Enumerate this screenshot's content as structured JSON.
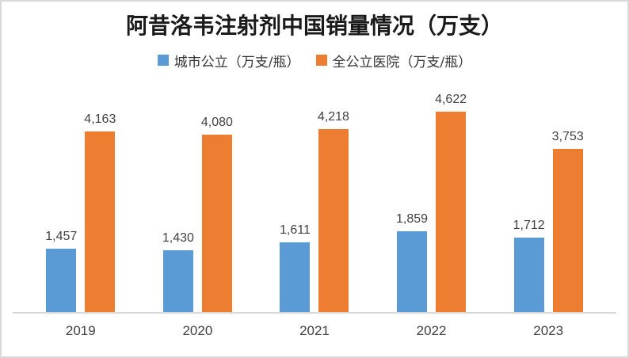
{
  "window": {
    "background_color": "#ffffff",
    "border_color": "#d9d9d9"
  },
  "chart_data": {
    "type": "bar",
    "title": "阿昔洛韦注射剂中国销量情况（万支）",
    "categories": [
      "2019",
      "2020",
      "2021",
      "2022",
      "2023"
    ],
    "series": [
      {
        "name": "城市公立（万支/瓶）",
        "color": "#5B9BD5",
        "values": [
          1457,
          1430,
          1611,
          1859,
          1712
        ],
        "value_labels": [
          "1,457",
          "1,430",
          "1,611",
          "1,859",
          "1,712"
        ]
      },
      {
        "name": "全公立医院（万支/瓶）",
        "color": "#ED7D31",
        "values": [
          4163,
          4080,
          4218,
          4622,
          3753
        ],
        "value_labels": [
          "4,163",
          "4,080",
          "4,218",
          "4,622",
          "3,753"
        ]
      }
    ],
    "ylim": [
      0,
      5000
    ],
    "grid": false,
    "legend_position": "top",
    "data_label_color": "#404040",
    "axis_line_color": "#d9d9d9",
    "xlabel": "",
    "ylabel": ""
  }
}
